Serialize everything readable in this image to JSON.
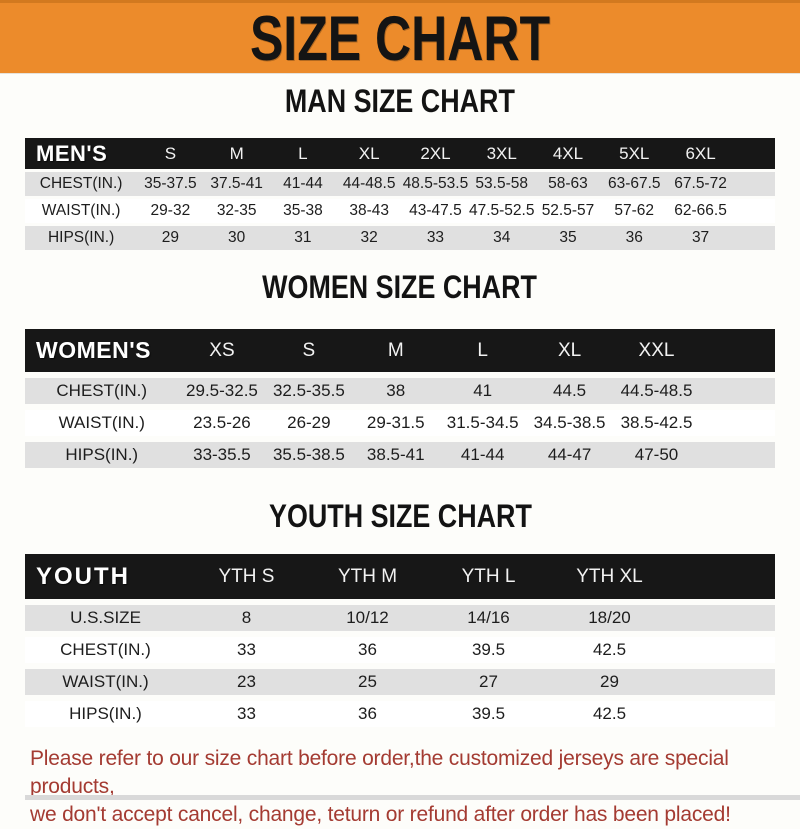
{
  "banner": {
    "title": "SIZE CHART"
  },
  "colors": {
    "banner_orange": "#ec8b2b",
    "header_bar_black": "#171717",
    "row_gray": "#e0e0e0",
    "footer_red": "#a43b32"
  },
  "sections": [
    {
      "heading": "MAN SIZE CHART",
      "table_label": "MEN'S",
      "columns": [
        "S",
        "M",
        "L",
        "XL",
        "2XL",
        "3XL",
        "4XL",
        "5XL",
        "6XL"
      ],
      "rows": [
        {
          "label": "CHEST(IN.)",
          "values": [
            "35-37.5",
            "37.5-41",
            "41-44",
            "44-48.5",
            "48.5-53.5",
            "53.5-58",
            "58-63",
            "63-67.5",
            "67.5-72"
          ]
        },
        {
          "label": "WAIST(IN.)",
          "values": [
            "29-32",
            "32-35",
            "35-38",
            "38-43",
            "43-47.5",
            "47.5-52.5",
            "52.5-57",
            "57-62",
            "62-66.5"
          ]
        },
        {
          "label": "HIPS(IN.)",
          "values": [
            "29",
            "30",
            "31",
            "32",
            "33",
            "34",
            "35",
            "36",
            "37"
          ]
        }
      ]
    },
    {
      "heading": "WOMEN SIZE CHART",
      "table_label": "WOMEN'S",
      "columns": [
        "XS",
        "S",
        "M",
        "L",
        "XL",
        "XXL"
      ],
      "rows": [
        {
          "label": "CHEST(IN.)",
          "values": [
            "29.5-32.5",
            "32.5-35.5",
            "38",
            "41",
            "44.5",
            "44.5-48.5"
          ]
        },
        {
          "label": "WAIST(IN.)",
          "values": [
            "23.5-26",
            "26-29",
            "29-31.5",
            "31.5-34.5",
            "34.5-38.5",
            "38.5-42.5"
          ]
        },
        {
          "label": "HIPS(IN.)",
          "values": [
            "33-35.5",
            "35.5-38.5",
            "38.5-41",
            "41-44",
            "44-47",
            "47-50"
          ]
        }
      ]
    },
    {
      "heading": "YOUTH SIZE CHART",
      "table_label": "YOUTH",
      "columns": [
        "YTH S",
        "YTH M",
        "YTH L",
        "YTH XL"
      ],
      "rows": [
        {
          "label": "U.S.SIZE",
          "values": [
            "8",
            "10/12",
            "14/16",
            "18/20"
          ]
        },
        {
          "label": "CHEST(IN.)",
          "values": [
            "33",
            "36",
            "39.5",
            "42.5"
          ]
        },
        {
          "label": "WAIST(IN.)",
          "values": [
            "23",
            "25",
            "27",
            "29"
          ]
        },
        {
          "label": "HIPS(IN.)",
          "values": [
            "33",
            "36",
            "39.5",
            "42.5"
          ]
        }
      ]
    }
  ],
  "footer": {
    "line1": "Please refer to our size chart before order,the customized jerseys are special products,",
    "line2": "we don't accept cancel, change, teturn or refund after order has been placed!"
  }
}
